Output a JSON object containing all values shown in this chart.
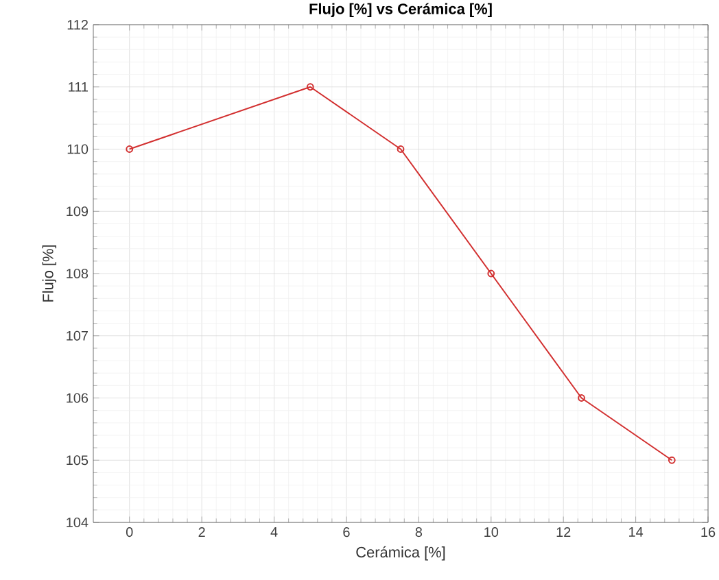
{
  "chart_data": {
    "type": "line",
    "title": "Flujo [%] vs Cerámica [%]",
    "xlabel": "Cerámica [%]",
    "ylabel": "Flujo [%]",
    "x": [
      0,
      5,
      7.5,
      10,
      12.5,
      15
    ],
    "series": [
      {
        "color": "#d22f2f",
        "values": [
          110,
          111,
          110,
          108,
          106,
          105
        ]
      }
    ],
    "xlim": [
      -1,
      16
    ],
    "ylim": [
      104,
      112
    ],
    "xticks": [
      0,
      2,
      4,
      6,
      8,
      10,
      12,
      14,
      16
    ],
    "yticks": [
      104,
      105,
      106,
      107,
      108,
      109,
      110,
      111,
      112
    ],
    "grid": true,
    "marker": "circle",
    "line_style": "solid"
  }
}
